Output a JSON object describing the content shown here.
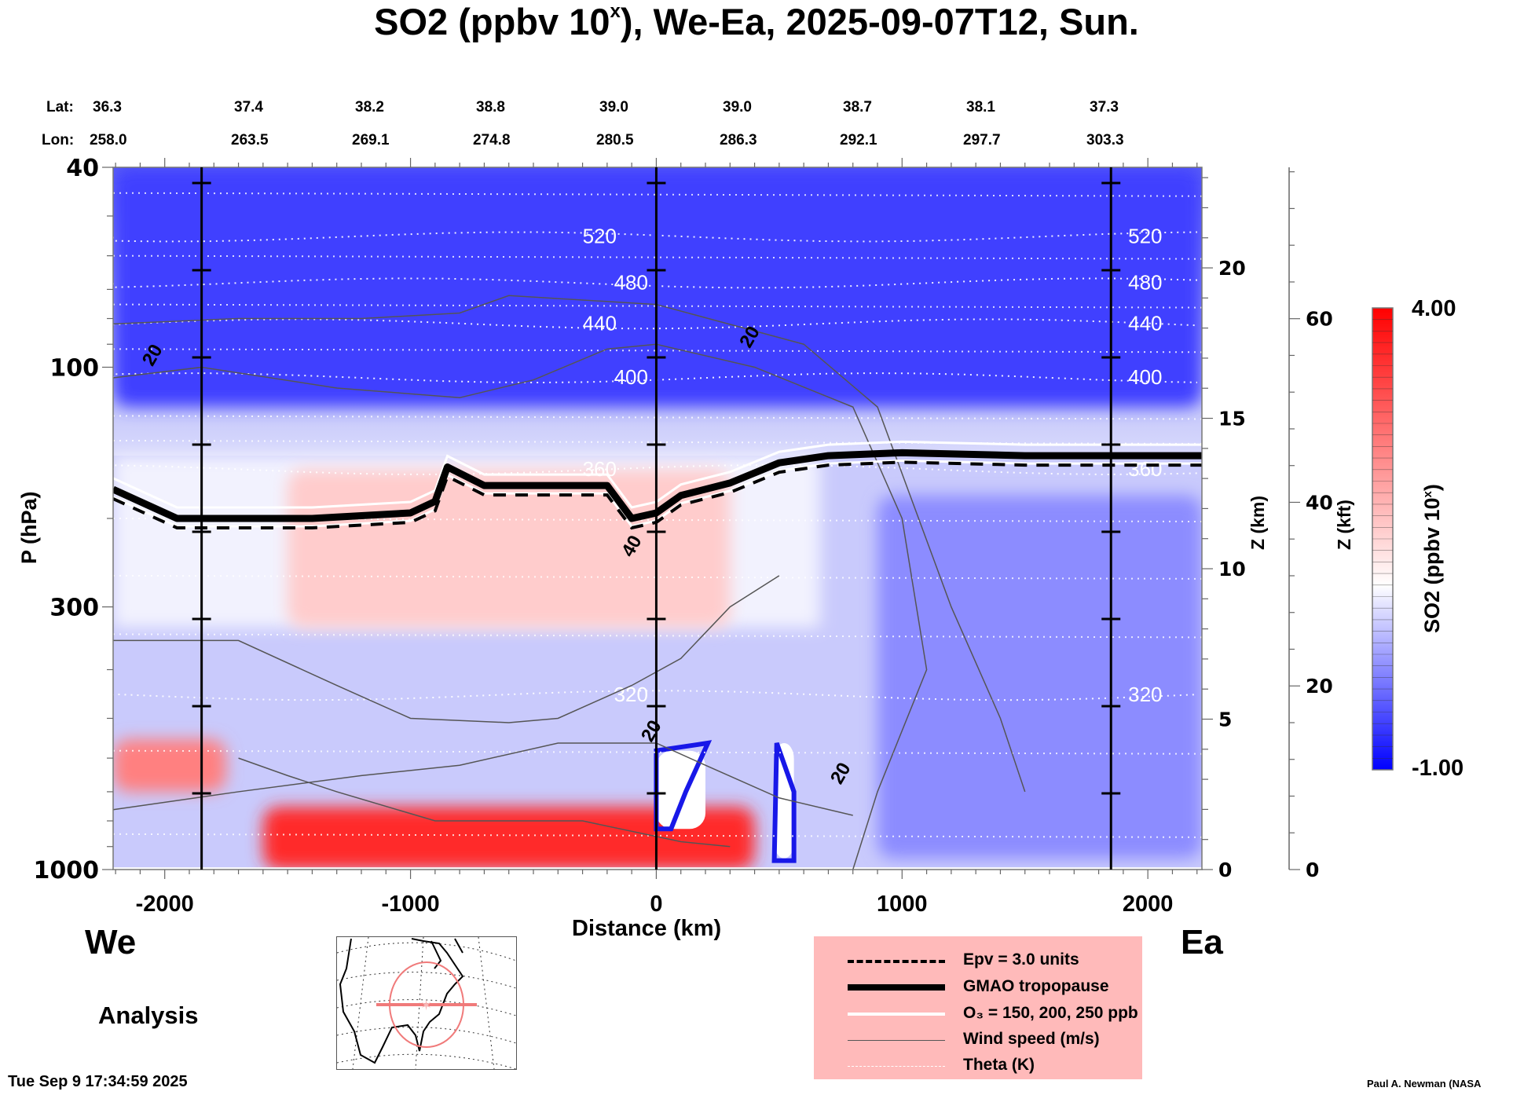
{
  "title_main": "SO2 (ppbv 10",
  "title_sup": "x",
  "title_rest": "), We-Ea, 2025-09-07T12, Sun.",
  "header": {
    "lat_label": "Lat:",
    "lon_label": "Lon:",
    "lats": [
      "36.3",
      "37.4",
      "38.2",
      "38.8",
      "39.0",
      "39.0",
      "38.7",
      "38.1",
      "37.3"
    ],
    "lons": [
      "258.0",
      "263.5",
      "269.1",
      "274.8",
      "280.5",
      "286.3",
      "292.1",
      "297.7",
      "303.3"
    ]
  },
  "labels": {
    "west": "We",
    "east": "Ea",
    "analysis": "Analysis",
    "timestamp": "Tue Sep  9 17:34:59 2025",
    "credit": "Paul A. Newman (NASA"
  },
  "legend": {
    "items": [
      {
        "label": "Epv = 3.0 units",
        "style": "dashed"
      },
      {
        "label": "GMAO tropopause",
        "style": "thick"
      },
      {
        "label": "O₃ = 150, 200, 250 ppb",
        "style": "white"
      },
      {
        "label": "Wind speed (m/s)",
        "style": "thin"
      },
      {
        "label": "Theta (K)",
        "style": "dotted"
      }
    ]
  },
  "colorbar": {
    "label": "SO2 (ppbv 10",
    "label_sup": "x",
    "label_end": ")",
    "max_label": "4.00",
    "min_label": "-1.00",
    "min": -1.0,
    "max": 4.0,
    "low_color": "#0000ff",
    "mid_color": "#ffffff",
    "high_color": "#ff0000"
  },
  "chart_data": {
    "type": "heatmap",
    "title": "SO2 (ppbv 10^x), We-Ea, 2025-09-07T12, Sun.",
    "xlabel": "Distance (km)",
    "ylabel": "P (hPa)",
    "y2label": "Z (km)",
    "y3label": "Z (kft)",
    "xlim": [
      -2210,
      2220
    ],
    "ylim": [
      1000,
      40
    ],
    "yscale": "log",
    "x_ticks": [
      -2000,
      -1000,
      0,
      1000,
      2000
    ],
    "x_tick_labels": [
      "-2000",
      "-1000",
      "0",
      "1000",
      "2000"
    ],
    "y_ticks": [
      40,
      100,
      300,
      1000
    ],
    "y_tick_labels": [
      "40",
      "100",
      "300",
      "1000"
    ],
    "z_km_ticks": [
      0,
      5,
      10,
      15,
      20
    ],
    "z_km_tick_labels": [
      "0",
      "5",
      "10",
      "15",
      "20"
    ],
    "z_kft_ticks": [
      0,
      20,
      40,
      60
    ],
    "z_kft_tick_labels": [
      "0",
      "20",
      "40",
      "60"
    ],
    "vertical_markers_km": [
      -1850,
      0,
      1850
    ],
    "theta_contours_K": [
      {
        "value": 520,
        "label": "520",
        "p_hPa": 55
      },
      {
        "value": 480,
        "label": "480",
        "p_hPa": 68
      },
      {
        "value": 440,
        "label": "440",
        "p_hPa": 82
      },
      {
        "value": 400,
        "label": "400",
        "p_hPa": 105
      },
      {
        "value": 360,
        "label": "360",
        "p_hPa": 160
      },
      {
        "value": 320,
        "label": "320",
        "p_hPa": 450
      }
    ],
    "wind_speed_labels": [
      {
        "label": "20",
        "x_km": -2050,
        "p_hPa": 100
      },
      {
        "label": "20",
        "x_km": 380,
        "p_hPa": 92
      },
      {
        "label": "40",
        "x_km": -100,
        "p_hPa": 240
      },
      {
        "label": "20",
        "x_km": -20,
        "p_hPa": 560
      },
      {
        "label": "20",
        "x_km": 750,
        "p_hPa": 680
      }
    ],
    "tropopause_hPa": {
      "x_km": [
        -2210,
        -2050,
        -1950,
        -1850,
        -1400,
        -1000,
        -900,
        -850,
        -700,
        -400,
        -200,
        -100,
        0,
        100,
        300,
        500,
        700,
        1000,
        1500,
        2000,
        2220
      ],
      "p_hPa": [
        175,
        190,
        200,
        200,
        200,
        195,
        185,
        158,
        172,
        172,
        172,
        200,
        195,
        180,
        170,
        155,
        150,
        148,
        150,
        150,
        150
      ]
    },
    "so2_features": [
      {
        "region": "boundary layer red band",
        "x_km": [
          -1600,
          400
        ],
        "p_hPa": [
          750,
          1000
        ],
        "value": 3.5
      },
      {
        "region": "west low-level red",
        "x_km": [
          -2210,
          -1750
        ],
        "p_hPa": [
          550,
          700
        ],
        "value": 2.5
      },
      {
        "region": "upper troposphere light red",
        "x_km": [
          -1500,
          300
        ],
        "p_hPa": [
          160,
          330
        ],
        "value": 1.6
      },
      {
        "region": "stratosphere blue",
        "x_km": [
          -2210,
          2220
        ],
        "p_hPa": [
          40,
          120
        ],
        "value": -0.5
      },
      {
        "region": "east troposphere blue",
        "x_km": [
          900,
          2220
        ],
        "p_hPa": [
          180,
          950
        ],
        "value": 0.1
      },
      {
        "region": "missing/white column",
        "x_km": [
          0,
          200
        ],
        "p_hPa": [
          580,
          830
        ],
        "value": null
      },
      {
        "region": "missing/white column",
        "x_km": [
          480,
          560
        ],
        "p_hPa": [
          560,
          950
        ],
        "value": null
      }
    ]
  }
}
